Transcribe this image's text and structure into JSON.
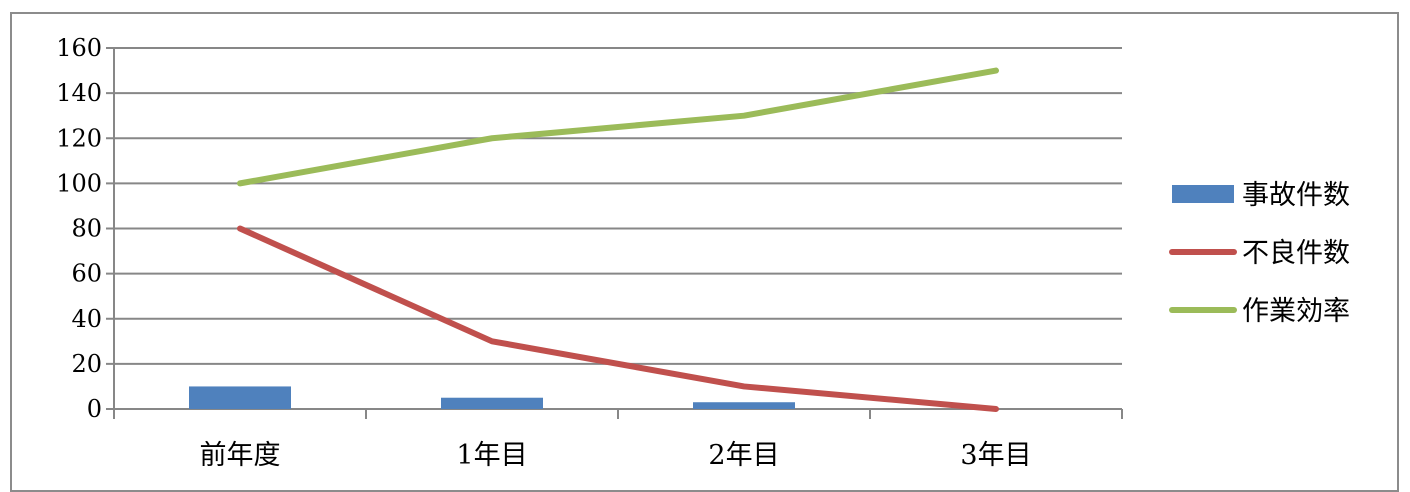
{
  "chart_data": {
    "type": "bar+line",
    "categories": [
      "前年度",
      "1年目",
      "2年目",
      "3年目"
    ],
    "series": [
      {
        "name": "事故件数",
        "type": "bar",
        "values": [
          10,
          5,
          3,
          0
        ],
        "color": "#4f81bd"
      },
      {
        "name": "不良件数",
        "type": "line",
        "values": [
          80,
          30,
          10,
          0
        ],
        "color": "#c0504d"
      },
      {
        "name": "作業効率",
        "type": "line",
        "values": [
          100,
          120,
          130,
          150
        ],
        "color": "#9bbb59"
      }
    ],
    "ylim": [
      0,
      160
    ],
    "yticks": [
      0,
      20,
      40,
      60,
      80,
      100,
      120,
      140,
      160
    ],
    "grid": true,
    "legend_position": "right"
  }
}
